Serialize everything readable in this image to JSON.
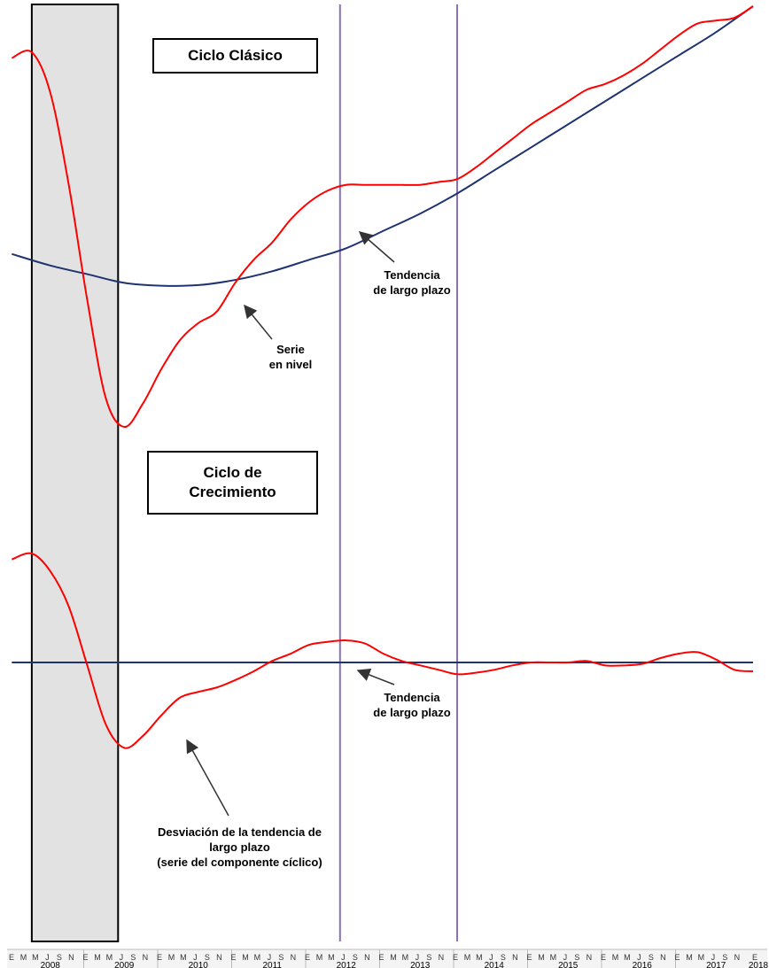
{
  "chart_data": [
    {
      "type": "line",
      "title": "Ciclo Clásico",
      "x_axis": {
        "years": [
          "2008",
          "2009",
          "2010",
          "2011",
          "2012",
          "2013",
          "2014",
          "2015",
          "2016",
          "2017",
          "2018"
        ],
        "month_ticks": [
          "E",
          "M",
          "M",
          "J",
          "S",
          "N"
        ],
        "last_tick": "E"
      },
      "shaded_recession": {
        "start": "2008-04",
        "end": "2009-06"
      },
      "vertical_markers": [
        "2012-06",
        "2014-01"
      ],
      "series": [
        {
          "label": "Serie en nivel",
          "color": "#ff0000",
          "points": [
            [
              2007.98,
              0.84
            ],
            [
              2008.25,
              0.85
            ],
            [
              2008.5,
              0.78
            ],
            [
              2008.75,
              0.62
            ],
            [
              2009.0,
              0.42
            ],
            [
              2009.25,
              0.25
            ],
            [
              2009.5,
              0.2
            ],
            [
              2009.75,
              0.24
            ],
            [
              2010.0,
              0.3
            ],
            [
              2010.25,
              0.35
            ],
            [
              2010.5,
              0.38
            ],
            [
              2010.75,
              0.4
            ],
            [
              2011.0,
              0.45
            ],
            [
              2011.25,
              0.49
            ],
            [
              2011.5,
              0.52
            ],
            [
              2011.75,
              0.56
            ],
            [
              2012.0,
              0.59
            ],
            [
              2012.25,
              0.61
            ],
            [
              2012.5,
              0.62
            ],
            [
              2012.75,
              0.62
            ],
            [
              2013.0,
              0.62
            ],
            [
              2013.25,
              0.62
            ],
            [
              2013.5,
              0.62
            ],
            [
              2013.75,
              0.625
            ],
            [
              2014.0,
              0.63
            ],
            [
              2014.25,
              0.65
            ],
            [
              2014.5,
              0.675
            ],
            [
              2014.75,
              0.7
            ],
            [
              2015.0,
              0.725
            ],
            [
              2015.25,
              0.745
            ],
            [
              2015.5,
              0.765
            ],
            [
              2015.75,
              0.785
            ],
            [
              2016.0,
              0.795
            ],
            [
              2016.25,
              0.81
            ],
            [
              2016.5,
              0.83
            ],
            [
              2016.75,
              0.855
            ],
            [
              2017.0,
              0.88
            ],
            [
              2017.25,
              0.9
            ],
            [
              2017.5,
              0.905
            ],
            [
              2017.75,
              0.91
            ],
            [
              2018.0,
              0.93
            ]
          ]
        },
        {
          "label": "Tendencia de largo plazo",
          "color": "#1f3370",
          "points": [
            [
              2007.98,
              0.5
            ],
            [
              2008.5,
              0.48
            ],
            [
              2009.0,
              0.465
            ],
            [
              2009.5,
              0.45
            ],
            [
              2010.0,
              0.445
            ],
            [
              2010.5,
              0.446
            ],
            [
              2011.0,
              0.455
            ],
            [
              2011.5,
              0.47
            ],
            [
              2012.0,
              0.49
            ],
            [
              2012.5,
              0.51
            ],
            [
              2013.0,
              0.54
            ],
            [
              2013.5,
              0.57
            ],
            [
              2014.0,
              0.605
            ],
            [
              2014.5,
              0.645
            ],
            [
              2015.0,
              0.685
            ],
            [
              2015.5,
              0.725
            ],
            [
              2016.0,
              0.765
            ],
            [
              2016.5,
              0.805
            ],
            [
              2017.0,
              0.845
            ],
            [
              2017.5,
              0.885
            ],
            [
              2018.0,
              0.93
            ]
          ]
        }
      ],
      "annotations": [
        {
          "lines": [
            "Tendencia",
            "de largo plazo"
          ]
        },
        {
          "lines": [
            "Serie",
            "en nivel"
          ]
        }
      ]
    },
    {
      "type": "line",
      "title": "Ciclo de Crecimiento",
      "title_lines": [
        "Ciclo de",
        "Crecimiento"
      ],
      "series": [
        {
          "label": "Desviación de la tendencia de largo plazo (serie del componente cíclico)",
          "color": "#ff0000",
          "points": [
            [
              2007.98,
              0.38
            ],
            [
              2008.25,
              0.4
            ],
            [
              2008.5,
              0.34
            ],
            [
              2008.75,
              0.22
            ],
            [
              2009.0,
              0.02
            ],
            [
              2009.25,
              -0.18
            ],
            [
              2009.5,
              -0.26
            ],
            [
              2009.75,
              -0.22
            ],
            [
              2010.0,
              -0.15
            ],
            [
              2010.25,
              -0.09
            ],
            [
              2010.5,
              -0.07
            ],
            [
              2010.75,
              -0.055
            ],
            [
              2011.0,
              -0.03
            ],
            [
              2011.25,
              0.0
            ],
            [
              2011.5,
              0.035
            ],
            [
              2011.75,
              0.06
            ],
            [
              2012.0,
              0.09
            ],
            [
              2012.25,
              0.1
            ],
            [
              2012.5,
              0.105
            ],
            [
              2012.75,
              0.095
            ],
            [
              2013.0,
              0.06
            ],
            [
              2013.25,
              0.035
            ],
            [
              2013.5,
              0.02
            ],
            [
              2013.75,
              0.005
            ],
            [
              2014.0,
              -0.01
            ],
            [
              2014.25,
              -0.005
            ],
            [
              2014.5,
              0.005
            ],
            [
              2014.75,
              0.02
            ],
            [
              2015.0,
              0.03
            ],
            [
              2015.25,
              0.03
            ],
            [
              2015.5,
              0.03
            ],
            [
              2015.75,
              0.035
            ],
            [
              2016.0,
              0.02
            ],
            [
              2016.25,
              0.02
            ],
            [
              2016.5,
              0.025
            ],
            [
              2016.75,
              0.045
            ],
            [
              2017.0,
              0.06
            ],
            [
              2017.25,
              0.065
            ],
            [
              2017.5,
              0.04
            ],
            [
              2017.75,
              0.005
            ],
            [
              2018.0,
              0.0
            ]
          ]
        },
        {
          "label": "Tendencia de largo plazo",
          "color": "#1f3370",
          "points": [
            [
              2007.98,
              0.03
            ],
            [
              2018.0,
              0.03
            ]
          ]
        }
      ],
      "annotations": [
        {
          "lines": [
            "Tendencia",
            "de largo plazo"
          ]
        },
        {
          "lines": [
            "Desviación de la tendencia de",
            "largo plazo",
            "(serie del componente cíclico)"
          ]
        }
      ]
    }
  ]
}
